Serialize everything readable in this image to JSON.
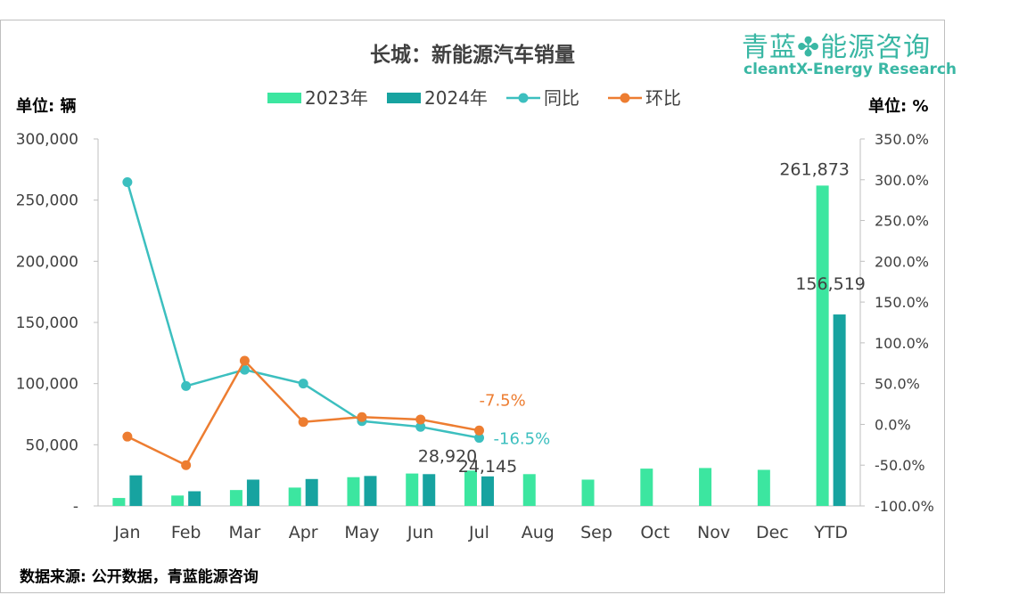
{
  "title": "长城：新能源汽车销量",
  "unit_left": "单位: 辆",
  "unit_right": "单位: %",
  "source": "数据来源: 公开数据，青蓝能源咨询",
  "logo": {
    "top": "青蓝",
    "icon": "clover-icon",
    "top_rest": "能源咨询",
    "bottom": "cleantX-Energy Research"
  },
  "colors": {
    "s2023": "#3ce6a0",
    "s2024": "#17a3a0",
    "yoy": "#3cbfbf",
    "mom": "#ed7d31",
    "text": "#404040",
    "logo": "#3ab7a4"
  },
  "chart_data": {
    "type": "bar",
    "title": "长城：新能源汽车销量",
    "categories": [
      "Jan",
      "Feb",
      "Mar",
      "Apr",
      "May",
      "Jun",
      "Jul",
      "Aug",
      "Sep",
      "Oct",
      "Nov",
      "Dec",
      "YTD"
    ],
    "series": [
      {
        "name": "2023年",
        "type": "bar",
        "axis": "left",
        "values": [
          6500,
          8500,
          13000,
          15000,
          23500,
          26500,
          28920,
          26000,
          21500,
          30500,
          31000,
          29500,
          261873
        ]
      },
      {
        "name": "2024年",
        "type": "bar",
        "axis": "left",
        "values": [
          25000,
          12000,
          21500,
          22000,
          24500,
          26000,
          24145,
          null,
          null,
          null,
          null,
          null,
          156519
        ]
      },
      {
        "name": "同比",
        "type": "line",
        "axis": "right",
        "values": [
          297,
          47,
          67,
          50,
          4,
          -3,
          -16.5,
          null,
          null,
          null,
          null,
          null,
          null
        ]
      },
      {
        "name": "环比",
        "type": "line",
        "axis": "right",
        "values": [
          -15,
          -50,
          78,
          3,
          9,
          6,
          -7.5,
          null,
          null,
          null,
          null,
          null,
          null
        ]
      }
    ],
    "ylim_left": [
      0,
      300000
    ],
    "yticks_left": [
      "-",
      "50,000",
      "100,000",
      "150,000",
      "200,000",
      "250,000",
      "300,000"
    ],
    "ylim_right": [
      -100,
      350
    ],
    "yticks_right": [
      "-100.0%",
      "-50.0%",
      "0.0%",
      "50.0%",
      "100.0%",
      "150.0%",
      "200.0%",
      "250.0%",
      "300.0%",
      "350.0%"
    ],
    "data_labels": [
      {
        "series": "2023年",
        "index": 6,
        "text": "28,920"
      },
      {
        "series": "2024年",
        "index": 6,
        "text": "24,145"
      },
      {
        "series": "2023年",
        "index": 12,
        "text": "261,873"
      },
      {
        "series": "2024年",
        "index": 12,
        "text": "156,519"
      },
      {
        "series": "同比",
        "index": 6,
        "text": "-16.5%"
      },
      {
        "series": "环比",
        "index": 6,
        "text": "-7.5%"
      }
    ],
    "legend": "top",
    "grid": false
  }
}
